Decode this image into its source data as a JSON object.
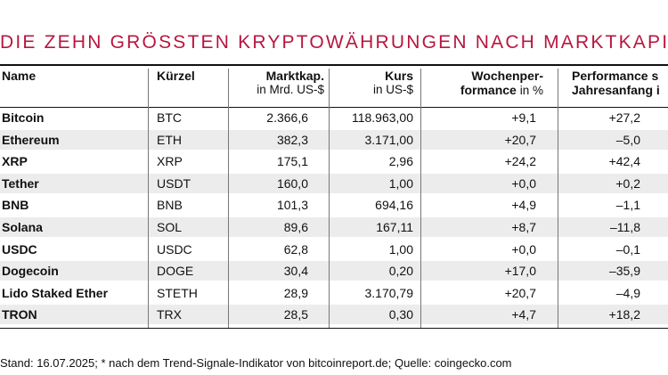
{
  "title": "DIE ZEHN GRÖSSTEN KRYPTOWÄHRUNGEN NACH MARKTKAPIT",
  "columns": {
    "name": "Name",
    "symbol": "Kürzel",
    "cap": "Marktkap.",
    "cap_unit": "in Mrd. US-$",
    "price": "Kurs",
    "price_unit": "in US-$",
    "week_1": "Wochenper-",
    "week_2": "formance",
    "week_unit": "in %",
    "ytd_1": "Performance s",
    "ytd_2": "Jahresanfang i"
  },
  "rows": [
    {
      "name": "Bitcoin",
      "symbol": "BTC",
      "cap": "2.366,6",
      "price": "118.963,00",
      "week": "+9,1",
      "ytd": "+27,2"
    },
    {
      "name": "Ethereum",
      "symbol": "ETH",
      "cap": "382,3",
      "price": "3.171,00",
      "week": "+20,7",
      "ytd": "–5,0"
    },
    {
      "name": "XRP",
      "symbol": "XRP",
      "cap": "175,1",
      "price": "2,96",
      "week": "+24,2",
      "ytd": "+42,4"
    },
    {
      "name": "Tether",
      "symbol": "USDT",
      "cap": "160,0",
      "price": "1,00",
      "week": "+0,0",
      "ytd": "+0,2"
    },
    {
      "name": "BNB",
      "symbol": "BNB",
      "cap": "101,3",
      "price": "694,16",
      "week": "+4,9",
      "ytd": "–1,1"
    },
    {
      "name": "Solana",
      "symbol": "SOL",
      "cap": "89,6",
      "price": "167,11",
      "week": "+8,7",
      "ytd": "–11,8"
    },
    {
      "name": "USDC",
      "symbol": "USDC",
      "cap": "62,8",
      "price": "1,00",
      "week": "+0,0",
      "ytd": "–0,1"
    },
    {
      "name": "Dogecoin",
      "symbol": "DOGE",
      "cap": "30,4",
      "price": "0,20",
      "week": "+17,0",
      "ytd": "–35,9"
    },
    {
      "name": "Lido Staked Ether",
      "symbol": "STETH",
      "cap": "28,9",
      "price": "3.170,79",
      "week": "+20,7",
      "ytd": "–4,9"
    },
    {
      "name": "TRON",
      "symbol": "TRX",
      "cap": "28,5",
      "price": "0,30",
      "week": "+4,7",
      "ytd": "+18,2"
    }
  ],
  "footer": "Stand: 16.07.2025; * nach dem Trend-Signale-Indikator von bitcoinreport.de; Quelle: coingecko.com",
  "colors": {
    "accent": "#b8163f",
    "shade": "#ececec"
  }
}
